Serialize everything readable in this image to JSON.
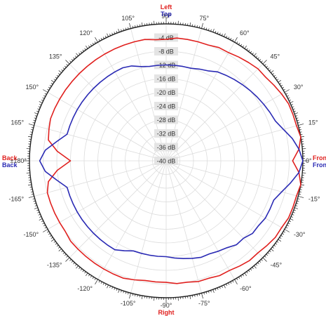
{
  "chart_data": {
    "type": "polar-line",
    "radial_axis": {
      "unit": "dB",
      "range": [
        -40,
        0
      ],
      "ticks": [
        "-4 dB",
        "-8 dB",
        "-12 dB",
        "-16 dB",
        "-20 dB",
        "-24 dB",
        "-28 dB",
        "-32 dB",
        "-36 dB",
        "-40 dB"
      ]
    },
    "angular_axis": {
      "unit": "degrees",
      "labels": [
        {
          "deg": 0,
          "text": "0°"
        },
        {
          "deg": 15,
          "text": "15°"
        },
        {
          "deg": 30,
          "text": "30°"
        },
        {
          "deg": 45,
          "text": "45°"
        },
        {
          "deg": 60,
          "text": "60°"
        },
        {
          "deg": 75,
          "text": "75°"
        },
        {
          "deg": 90,
          "text": "90°"
        },
        {
          "deg": 105,
          "text": "105°"
        },
        {
          "deg": 120,
          "text": "120°"
        },
        {
          "deg": 135,
          "text": "135°"
        },
        {
          "deg": 150,
          "text": "150°"
        },
        {
          "deg": 165,
          "text": "165°"
        },
        {
          "deg": 180,
          "text": "±180°"
        },
        {
          "deg": -165,
          "text": "-165°"
        },
        {
          "deg": -150,
          "text": "-150°"
        },
        {
          "deg": -135,
          "text": "-135°"
        },
        {
          "deg": -120,
          "text": "-120°"
        },
        {
          "deg": -105,
          "text": "-105°"
        },
        {
          "deg": -90,
          "text": "-90°"
        },
        {
          "deg": -75,
          "text": "-75°"
        },
        {
          "deg": -60,
          "text": "-60°"
        },
        {
          "deg": -45,
          "text": "-45°"
        },
        {
          "deg": -30,
          "text": "-30°"
        },
        {
          "deg": -15,
          "text": "-15°"
        }
      ]
    },
    "direction_labels": {
      "top": [
        {
          "text": "Left",
          "color": "#e0201e"
        },
        {
          "text": "Top",
          "color": "#2a2ab4"
        }
      ],
      "bottom": [
        {
          "text": "Right",
          "color": "#e0201e"
        },
        {
          "text": "Bottom",
          "color": "#2a2ab4"
        }
      ],
      "left": [
        {
          "text": "Back",
          "color": "#e0201e"
        },
        {
          "text": "Back",
          "color": "#2a2ab4"
        }
      ],
      "right": [
        {
          "text": "Front",
          "color": "#e0201e"
        },
        {
          "text": "Front",
          "color": "#2a2ab4"
        }
      ]
    },
    "grid": true,
    "series": [
      {
        "color": "#e0201e",
        "angles": [
          -180,
          -175,
          -170,
          -165,
          -160,
          -155,
          -150,
          -145,
          -140,
          -135,
          -130,
          -125,
          -120,
          -115,
          -110,
          -105,
          -100,
          -95,
          -90,
          -85,
          -80,
          -75,
          -70,
          -65,
          -60,
          -55,
          -50,
          -45,
          -40,
          -35,
          -30,
          -25,
          -20,
          -15,
          -10,
          -5,
          0,
          5,
          10,
          15,
          20,
          25,
          30,
          35,
          40,
          45,
          50,
          55,
          60,
          65,
          70,
          75,
          80,
          85,
          90,
          95,
          100,
          105,
          110,
          115,
          120,
          125,
          130,
          135,
          140,
          145,
          150,
          155,
          160,
          165,
          170,
          175
        ],
        "values": [
          -12,
          -8,
          -5,
          -4,
          -4,
          -4,
          -4,
          -4,
          -3.5,
          -3.5,
          -3.5,
          -3.5,
          -3.5,
          -3.5,
          -3.5,
          -4,
          -4.5,
          -4.5,
          -4.5,
          -4,
          -4,
          -3.5,
          -3.5,
          -3,
          -3,
          -2.5,
          -2,
          -2,
          -1.5,
          -1,
          -1,
          -0.5,
          -0.5,
          -0.5,
          0,
          -1,
          -3,
          -1,
          0,
          -0.5,
          -0.5,
          -0.5,
          -1,
          -1.5,
          -2,
          -2,
          -2.5,
          -3,
          -3.5,
          -3.5,
          -4,
          -4,
          -4,
          -4,
          -4.5,
          -4.5,
          -4,
          -4,
          -4,
          -4,
          -4,
          -4,
          -4,
          -4,
          -4,
          -4,
          -4,
          -4,
          -4,
          -4.5,
          -5,
          -8
        ]
      },
      {
        "color": "#2a2ab4",
        "angles": [
          -180,
          -175,
          -170,
          -165,
          -160,
          -155,
          -150,
          -145,
          -140,
          -135,
          -130,
          -125,
          -120,
          -115,
          -110,
          -105,
          -100,
          -95,
          -90,
          -85,
          -80,
          -75,
          -70,
          -65,
          -60,
          -55,
          -50,
          -45,
          -40,
          -35,
          -30,
          -25,
          -20,
          -15,
          -10,
          -5,
          0,
          5,
          10,
          15,
          20,
          25,
          30,
          35,
          40,
          45,
          50,
          55,
          60,
          65,
          70,
          75,
          80,
          85,
          90,
          95,
          100,
          105,
          110,
          115,
          120,
          125,
          130,
          135,
          140,
          145,
          150,
          155,
          160,
          165,
          170,
          175
        ],
        "values": [
          -3,
          -4.5,
          -7.5,
          -10,
          -10,
          -10,
          -10,
          -10,
          -10,
          -10,
          -10,
          -10,
          -10,
          -11,
          -12,
          -12,
          -12,
          -12,
          -12,
          -11.5,
          -11,
          -10.5,
          -10,
          -10,
          -9.5,
          -9,
          -8,
          -8,
          -7,
          -7,
          -6.5,
          -6.5,
          -6.5,
          -5,
          -3,
          -1,
          0,
          -1,
          -2.5,
          -4.5,
          -6,
          -6.5,
          -7,
          -7.5,
          -8,
          -8.5,
          -9,
          -9.5,
          -10,
          -11,
          -11.5,
          -12,
          -12,
          -12,
          -12,
          -12,
          -12,
          -11.5,
          -10.5,
          -10,
          -10,
          -10,
          -10,
          -10,
          -10,
          -10,
          -10,
          -10,
          -10,
          -10,
          -7.5,
          -4.5
        ]
      }
    ]
  }
}
